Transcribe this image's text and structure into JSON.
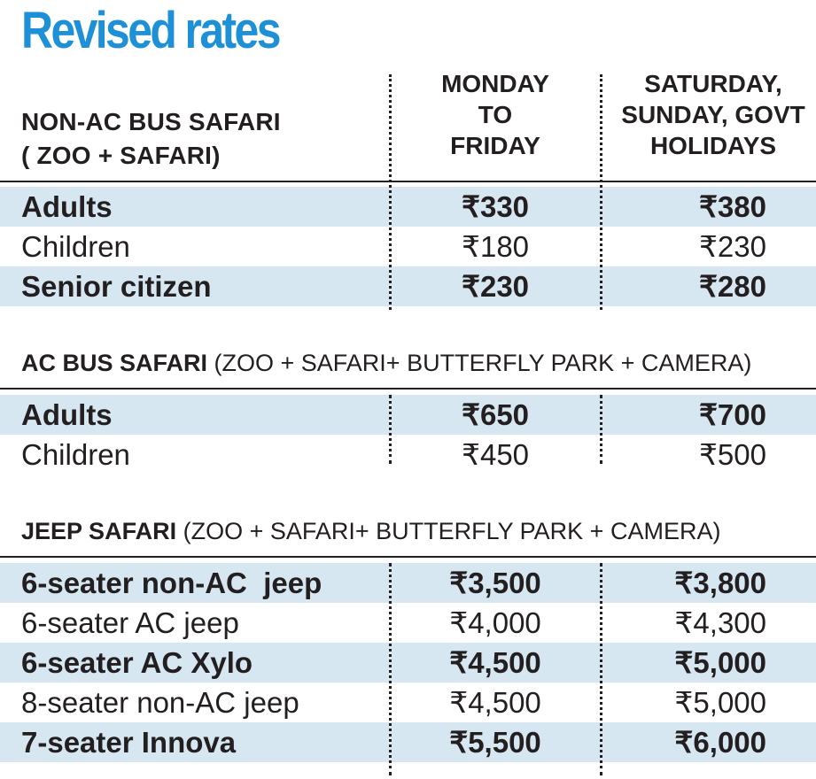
{
  "title": "Revised rates",
  "header": {
    "left_line1": "NON-AC BUS SAFARI",
    "left_line2": "( ZOO + SAFARI)",
    "col1": [
      "MONDAY",
      "TO",
      "FRIDAY"
    ],
    "col2": [
      "SATURDAY,",
      "SUNDAY, GOVT",
      "HOLIDAYS"
    ]
  },
  "non_ac_bus": [
    {
      "label": "Adults",
      "weekday": "₹330",
      "weekend": "₹380"
    },
    {
      "label": "Children",
      "weekday": "₹180",
      "weekend": "₹230"
    },
    {
      "label": "Senior citizen",
      "weekday": "₹230",
      "weekend": "₹280"
    }
  ],
  "ac_bus": {
    "title_bold": "AC BUS SAFARI",
    "title_rest": " (ZOO + SAFARI+ BUTTERFLY PARK + CAMERA)",
    "rows": [
      {
        "label": "Adults",
        "weekday": "₹650",
        "weekend": "₹700"
      },
      {
        "label": "Children",
        "weekday": "₹450",
        "weekend": "₹500"
      }
    ]
  },
  "jeep": {
    "title_bold": "JEEP SAFARI",
    "title_rest": " (ZOO + SAFARI+ BUTTERFLY PARK + CAMERA)",
    "rows": [
      {
        "label": "6-seater non-AC  jeep",
        "weekday": "₹3,500",
        "weekend": "₹3,800"
      },
      {
        "label": "6-seater AC jeep",
        "weekday": "₹4,000",
        "weekend": "₹4,300"
      },
      {
        "label": "6-seater AC Xylo",
        "weekday": "₹4,500",
        "weekend": "₹5,000"
      },
      {
        "label": "8-seater non-AC jeep",
        "weekday": "₹4,500",
        "weekend": "₹5,000"
      },
      {
        "label": "7-seater Innova",
        "weekday": "₹5,500",
        "weekend": "₹6,000"
      }
    ]
  },
  "colors": {
    "title": "#1e90d8",
    "shade": "#d6e7f2",
    "text": "#231f20"
  }
}
